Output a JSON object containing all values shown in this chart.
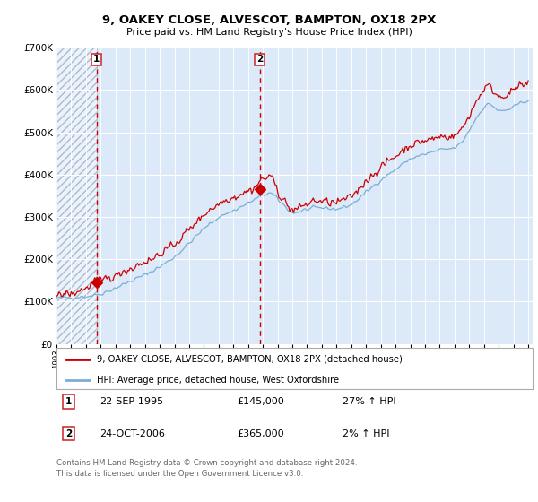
{
  "title": "9, OAKEY CLOSE, ALVESCOT, BAMPTON, OX18 2PX",
  "subtitle": "Price paid vs. HM Land Registry's House Price Index (HPI)",
  "sale1_date": "22-SEP-1995",
  "sale1_price": 145000,
  "sale1_hpi_pct": "27% ↑ HPI",
  "sale2_date": "24-OCT-2006",
  "sale2_price": 365000,
  "sale2_hpi_pct": "2% ↑ HPI",
  "legend_property": "9, OAKEY CLOSE, ALVESCOT, BAMPTON, OX18 2PX (detached house)",
  "legend_hpi": "HPI: Average price, detached house, West Oxfordshire",
  "footnote": "Contains HM Land Registry data © Crown copyright and database right 2024.\nThis data is licensed under the Open Government Licence v3.0.",
  "ylim": [
    0,
    700000
  ],
  "yticks": [
    0,
    100000,
    200000,
    300000,
    400000,
    500000,
    600000,
    700000
  ],
  "ytick_labels": [
    "£0",
    "£100K",
    "£200K",
    "£300K",
    "£400K",
    "£500K",
    "£600K",
    "£700K"
  ],
  "plot_bg_color": "#dce9f8",
  "grid_color": "#ffffff",
  "red_line_color": "#cc0000",
  "blue_line_color": "#7aafd4",
  "marker_color": "#cc0000",
  "vline_color": "#cc0000",
  "sale1_x": 1995.72,
  "sale2_x": 2006.8,
  "xlim_start": 1993,
  "xlim_end": 2025.3
}
